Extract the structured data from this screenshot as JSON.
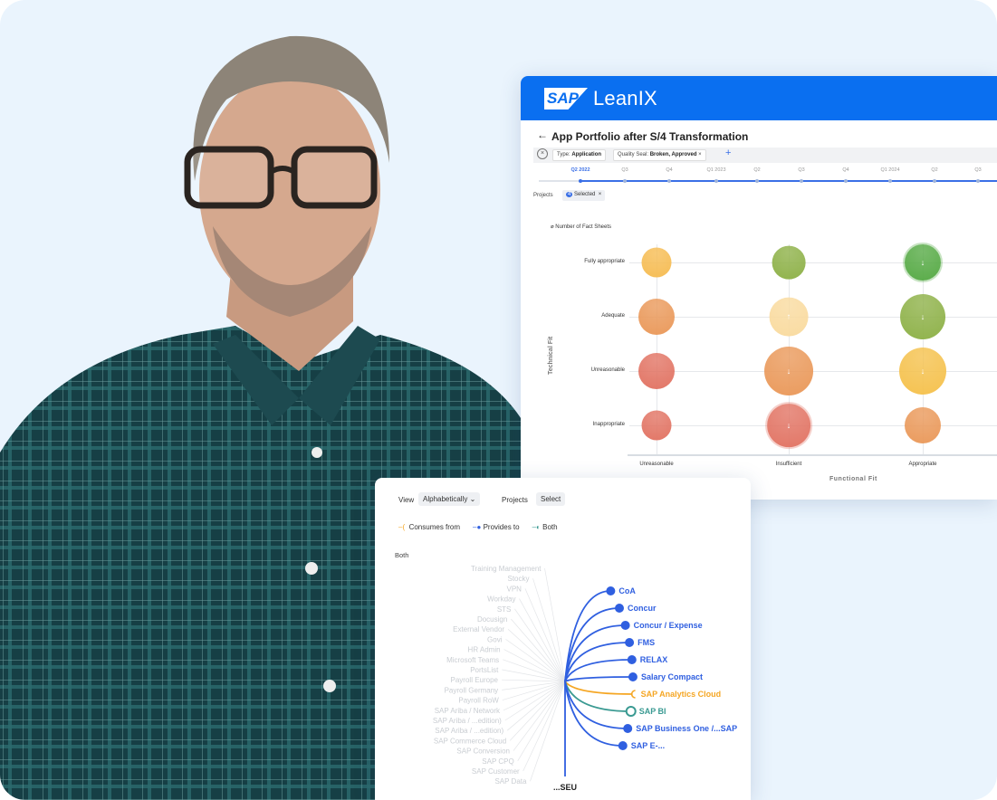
{
  "brand": {
    "logo_text": "SAP",
    "product": "LeanIX",
    "header_color": "#0a6ff0"
  },
  "report": {
    "title": "App Portfolio after S/4 Transformation",
    "filters": [
      {
        "key": "Type:",
        "value": "Application"
      },
      {
        "key": "Quality Seal:",
        "value": "Broken, Approved"
      }
    ],
    "timeline": [
      "Q2 2022",
      "Q3",
      "Q4",
      "Q1 2023",
      "Q2",
      "Q3",
      "Q4",
      "Q1 2024",
      "Q2",
      "Q3"
    ],
    "selected_period": "Q2 2022",
    "projects_label": "Projects",
    "projects_count": "4",
    "projects_selected": "Selected",
    "size_legend": "Number of Fact Sheets"
  },
  "chart_data": {
    "type": "bubble",
    "xlabel": "Functional Fit",
    "ylabel": "Technical Fit",
    "x_categories": [
      "Unreasonable",
      "Insufficient",
      "Appropriate"
    ],
    "y_categories": [
      "Fully appropriate",
      "Adequate",
      "Unreasonable",
      "Inappropriate"
    ],
    "points": [
      {
        "x": "Unreasonable",
        "y": "Fully appropriate",
        "size": 2,
        "color": "#f6bd55",
        "trend": ""
      },
      {
        "x": "Insufficient",
        "y": "Fully appropriate",
        "size": 3,
        "color": "#8fb24a",
        "trend": ""
      },
      {
        "x": "Appropriate",
        "y": "Fully appropriate",
        "size": 4,
        "color": "#58ab47",
        "trend": "down"
      },
      {
        "x": "Unreasonable",
        "y": "Adequate",
        "size": 4,
        "color": "#ea9a5c",
        "trend": ""
      },
      {
        "x": "Insufficient",
        "y": "Adequate",
        "size": 5,
        "color": "#f9dba0",
        "trend": "up"
      },
      {
        "x": "Appropriate",
        "y": "Adequate",
        "size": 8,
        "color": "#8fb24a",
        "trend": "down"
      },
      {
        "x": "Unreasonable",
        "y": "Unreasonable",
        "size": 4,
        "color": "#e27565",
        "trend": ""
      },
      {
        "x": "Insufficient",
        "y": "Unreasonable",
        "size": 10,
        "color": "#ea9a5c",
        "trend": "down"
      },
      {
        "x": "Appropriate",
        "y": "Unreasonable",
        "size": 9,
        "color": "#f5c24f",
        "trend": "down"
      },
      {
        "x": "Unreasonable",
        "y": "Inappropriate",
        "size": 2,
        "color": "#e27565",
        "trend": ""
      },
      {
        "x": "Insufficient",
        "y": "Inappropriate",
        "size": 7,
        "color": "#e27565",
        "trend": "down"
      },
      {
        "x": "Appropriate",
        "y": "Inappropriate",
        "size": 4,
        "color": "#ea9a5c",
        "trend": ""
      }
    ]
  },
  "dependency": {
    "view_label": "View",
    "view_value": "Alphabetically",
    "projects_label": "Projects",
    "projects_value": "Select",
    "legend": [
      {
        "label": "Consumes from",
        "color": "#f5a623"
      },
      {
        "label": "Provides to",
        "color": "#2f5fe0"
      },
      {
        "label": "Both",
        "color": "#3a9a92"
      }
    ],
    "filter_label": "Both",
    "center_label": "...SEU",
    "highlighted": [
      {
        "name": "CoA",
        "type": "provides"
      },
      {
        "name": "Concur",
        "type": "provides"
      },
      {
        "name": "Concur / Expense",
        "type": "provides"
      },
      {
        "name": "FMS",
        "type": "provides"
      },
      {
        "name": "RELAX",
        "type": "provides"
      },
      {
        "name": "Salary Compact",
        "type": "provides"
      },
      {
        "name": "SAP Analytics Cloud",
        "type": "consumes"
      },
      {
        "name": "SAP BI",
        "type": "both"
      },
      {
        "name": "SAP Business One /...SAP",
        "type": "provides"
      },
      {
        "name": "SAP E-...",
        "type": "provides"
      }
    ],
    "faded": [
      "Training Management",
      "Stocky",
      "VPN",
      "Workday",
      "STS",
      "Docusign",
      "External Vendor",
      "Govi",
      "HR Admin",
      "Microsoft Teams",
      "PortsList",
      "Payroll Europe",
      "Payroll Germany",
      "Payroll RoW",
      "SAP Ariba / Network",
      "SAP Ariba / ...edition)",
      "SAP Ariba / ...edition)",
      "SAP Commerce Cloud",
      "SAP Conversion",
      "SAP CPQ",
      "SAP Customer",
      "SAP Data"
    ]
  }
}
